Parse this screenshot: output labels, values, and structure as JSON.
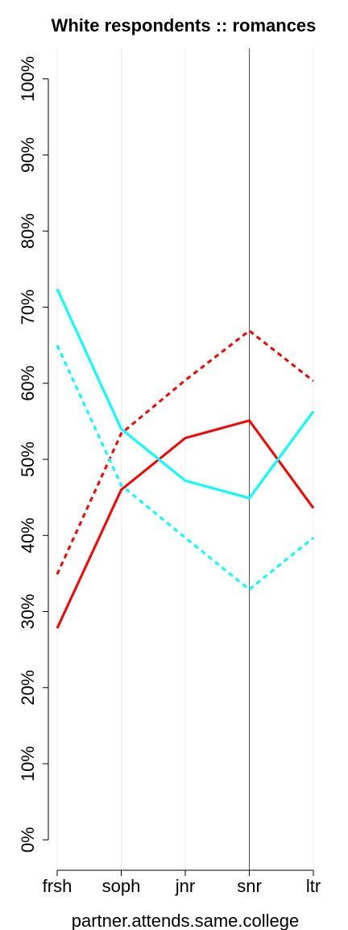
{
  "chart_data": {
    "type": "line",
    "title": "White respondents :: romances",
    "x_label": "partner.attends.same.college",
    "categories": [
      "frsh",
      "soph",
      "jnr",
      "snr",
      "ltr"
    ],
    "series": [
      {
        "color": "#ff0000",
        "dashed": false,
        "values": [
          27.8,
          46.0,
          52.8,
          55.1,
          43.6
        ]
      },
      {
        "color": "#ff0000",
        "dashed": true,
        "values": [
          34.9,
          53.4,
          60.4,
          66.9,
          60.3
        ]
      },
      {
        "color": "#00ffff",
        "dashed": false,
        "values": [
          72.4,
          54.0,
          47.2,
          44.9,
          56.3
        ]
      },
      {
        "color": "#00ffff",
        "dashed": true,
        "values": [
          65.0,
          46.6,
          39.7,
          32.9,
          39.7
        ]
      }
    ],
    "ylim": [
      -4,
      104
    ],
    "yticks": [
      {
        "value": 0,
        "label": "0%"
      },
      {
        "value": 10,
        "label": "10%"
      },
      {
        "value": 20,
        "label": "20%"
      },
      {
        "value": 30,
        "label": "30%"
      },
      {
        "value": 40,
        "label": "40%"
      },
      {
        "value": 50,
        "label": "50%"
      },
      {
        "value": 60,
        "label": "60%"
      },
      {
        "value": 70,
        "label": "70%"
      },
      {
        "value": 80,
        "label": "80%"
      },
      {
        "value": 90,
        "label": "90%"
      },
      {
        "value": 100,
        "label": "100%"
      }
    ],
    "vertical_grid": true,
    "reference_category_index": 3
  }
}
